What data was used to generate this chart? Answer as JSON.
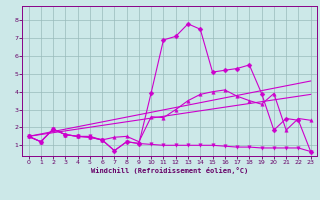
{
  "title": "",
  "xlabel": "Windchill (Refroidissement éolien,°C)",
  "bg_color": "#cce8e8",
  "line_color": "#cc00cc",
  "grid_color": "#99bbbb",
  "xlim": [
    -0.5,
    23.5
  ],
  "ylim": [
    0.4,
    8.8
  ],
  "xticks": [
    0,
    1,
    2,
    3,
    4,
    5,
    6,
    7,
    8,
    9,
    10,
    11,
    12,
    13,
    14,
    15,
    16,
    17,
    18,
    19,
    20,
    21,
    22,
    23
  ],
  "yticks": [
    1,
    2,
    3,
    4,
    5,
    6,
    7,
    8
  ],
  "series": [
    {
      "x": [
        0,
        1,
        2,
        3,
        4,
        5,
        6,
        7,
        8,
        9,
        10,
        11,
        12,
        13,
        14,
        15,
        16,
        17,
        18,
        19,
        20,
        21,
        22,
        23
      ],
      "y": [
        1.5,
        1.2,
        1.9,
        1.6,
        1.5,
        1.5,
        1.3,
        0.7,
        1.2,
        1.1,
        1.05,
        1.0,
        1.0,
        1.0,
        1.0,
        1.0,
        0.95,
        0.9,
        0.9,
        0.85,
        0.85,
        0.85,
        0.85,
        0.65
      ],
      "marker": "v",
      "markersize": 2.5,
      "linewidth": 0.8
    },
    {
      "x": [
        0,
        1,
        2,
        3,
        4,
        5,
        6,
        7,
        8,
        9,
        10,
        11,
        12,
        13,
        14,
        15,
        16,
        17,
        18,
        19,
        20,
        21,
        22,
        23
      ],
      "y": [
        1.5,
        1.2,
        1.9,
        1.6,
        1.5,
        1.45,
        1.3,
        1.45,
        1.5,
        1.2,
        2.6,
        2.55,
        3.0,
        3.5,
        3.85,
        4.0,
        4.1,
        3.75,
        3.5,
        3.3,
        3.9,
        1.85,
        2.5,
        2.4
      ],
      "marker": "^",
      "markersize": 2.5,
      "linewidth": 0.8
    },
    {
      "x": [
        0,
        1,
        2,
        3,
        4,
        5,
        6,
        7,
        8,
        9,
        10,
        11,
        12,
        13,
        14,
        15,
        16,
        17,
        18,
        19,
        20,
        21,
        22,
        23
      ],
      "y": [
        1.5,
        1.2,
        1.9,
        1.6,
        1.5,
        1.45,
        1.3,
        0.7,
        1.2,
        1.1,
        3.95,
        6.9,
        7.1,
        7.8,
        7.5,
        5.1,
        5.2,
        5.3,
        5.5,
        3.9,
        1.85,
        2.5,
        2.4,
        0.65
      ],
      "marker": "D",
      "markersize": 2.5,
      "linewidth": 0.8
    },
    {
      "x": [
        0,
        23
      ],
      "y": [
        1.5,
        3.85
      ],
      "marker": null,
      "markersize": 0,
      "linewidth": 0.8
    },
    {
      "x": [
        0,
        23
      ],
      "y": [
        1.5,
        4.6
      ],
      "marker": null,
      "markersize": 0,
      "linewidth": 0.8
    }
  ]
}
